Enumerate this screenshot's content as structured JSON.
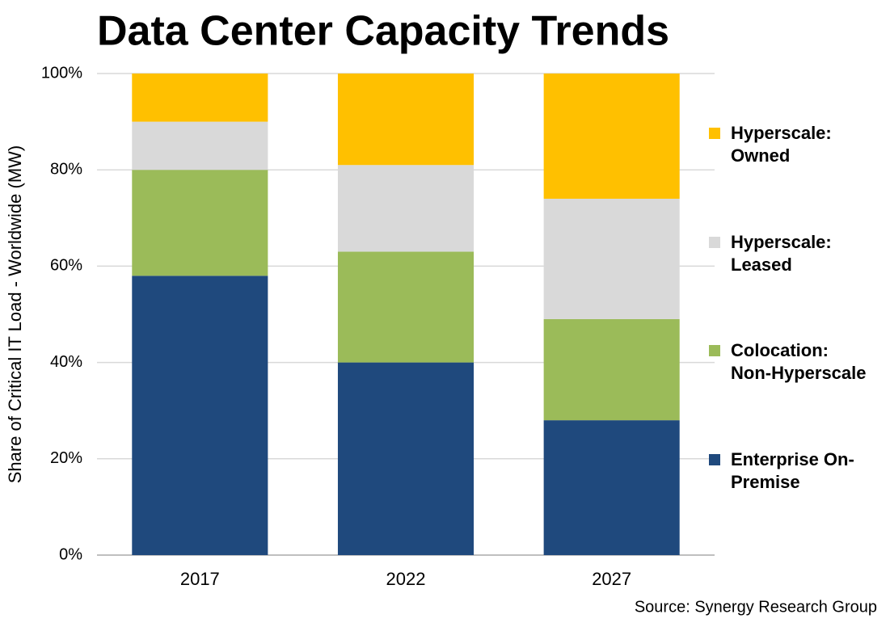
{
  "chart_data": {
    "type": "stacked_bar",
    "title": "Data Center Capacity Trends",
    "y_label": "Share of Critical IT Load - Worldwide (MW)",
    "source": "Source: Synergy  Research Group",
    "categories": [
      "2017",
      "2022",
      "2027"
    ],
    "series": [
      {
        "name": "Enterprise On-Premise",
        "color": "#1f497d",
        "values": [
          58,
          40,
          28
        ]
      },
      {
        "name": "Colocation: Non-Hyperscale",
        "color": "#9bbb59",
        "values": [
          22,
          23,
          21
        ]
      },
      {
        "name": "Hyperscale: Leased",
        "color": "#d9d9d9",
        "values": [
          10,
          18,
          25
        ]
      },
      {
        "name": "Hyperscale: Owned",
        "color": "#ffc000",
        "values": [
          10,
          19,
          26
        ]
      }
    ],
    "ylim": [
      0,
      100
    ],
    "yticks": [
      {
        "value": 0,
        "label": "0%"
      },
      {
        "value": 20,
        "label": "20%"
      },
      {
        "value": 40,
        "label": "40%"
      },
      {
        "value": 60,
        "label": "60%"
      },
      {
        "value": 80,
        "label": "80%"
      },
      {
        "value": 100,
        "label": "100%"
      }
    ],
    "grid": true,
    "legend": "right"
  }
}
